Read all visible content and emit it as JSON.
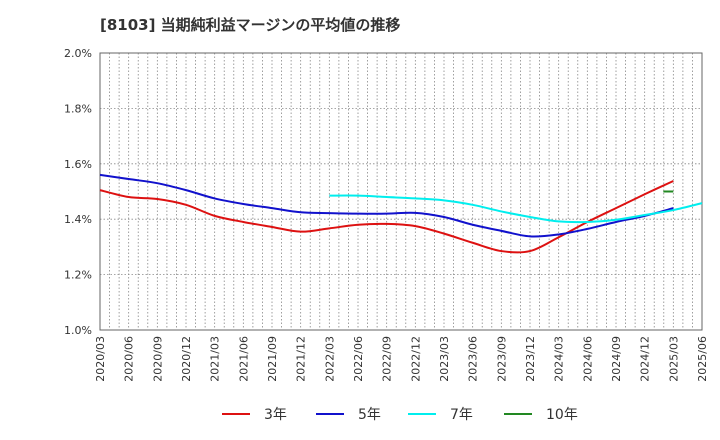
{
  "chart_data": {
    "type": "line",
    "title": "[8103]  当期純利益マージンの平均値の推移",
    "xlabel": "",
    "ylabel": "",
    "y_tick_labels": [
      "1.0%",
      "1.2%",
      "1.4%",
      "1.6%",
      "1.8%",
      "2.0%"
    ],
    "ylim": [
      1.0,
      2.0
    ],
    "x_tick_labels": [
      "2020/03",
      "2020/06",
      "2020/09",
      "2020/12",
      "2021/03",
      "2021/06",
      "2021/09",
      "2021/12",
      "2022/03",
      "2022/06",
      "2022/09",
      "2022/12",
      "2023/03",
      "2023/06",
      "2023/09",
      "2023/12",
      "2024/03",
      "2024/06",
      "2024/09",
      "2024/12",
      "2025/03",
      "2025/06"
    ],
    "grid": true,
    "legend_position": "bottom",
    "series": [
      {
        "name": "3年",
        "color": "#dd1111",
        "start_index": 0,
        "values": [
          1.505,
          1.48,
          1.473,
          1.452,
          1.412,
          1.39,
          1.372,
          1.355,
          1.367,
          1.38,
          1.383,
          1.375,
          1.348,
          1.315,
          1.285,
          1.285,
          1.335,
          1.39,
          1.44,
          1.49,
          1.538
        ]
      },
      {
        "name": "5年",
        "color": "#1111cc",
        "start_index": 0,
        "values": [
          1.56,
          1.545,
          1.53,
          1.505,
          1.475,
          1.455,
          1.44,
          1.425,
          1.422,
          1.42,
          1.42,
          1.423,
          1.408,
          1.38,
          1.358,
          1.338,
          1.345,
          1.365,
          1.39,
          1.412,
          1.44
        ]
      },
      {
        "name": "7年",
        "color": "#00eeee",
        "start_index": 8,
        "values": [
          1.485,
          1.485,
          1.48,
          1.475,
          1.468,
          1.452,
          1.428,
          1.408,
          1.392,
          1.39,
          1.398,
          1.415,
          1.433,
          1.458
        ]
      },
      {
        "name": "10年",
        "color": "#228822",
        "start_index": 20,
        "values": [
          1.5
        ]
      }
    ]
  }
}
